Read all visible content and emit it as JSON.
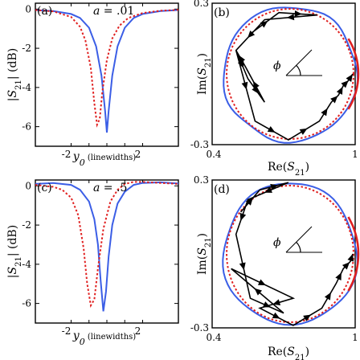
{
  "colors": {
    "blue": "#3b5ee6",
    "red": "#e02020",
    "black": "#000000"
  },
  "chart_data": [
    {
      "panel": "(a)",
      "type": "line",
      "annotation": "a = .01",
      "xlabel": "y0 (linewidths)",
      "ylabel": "|S21| (dB)",
      "xlim": [
        -4,
        4
      ],
      "ylim": [
        -7,
        0.3
      ],
      "xticks": [
        -2,
        2
      ],
      "yticks": [
        0,
        -2,
        -4,
        -6
      ],
      "series": [
        {
          "style": "blue-solid",
          "x": [
            -4,
            -3,
            -2,
            -1.5,
            -1,
            -0.6,
            -0.3,
            -0.1,
            0,
            0.1,
            0.3,
            0.6,
            1,
            1.5,
            2,
            3,
            4
          ],
          "y": [
            -0.05,
            -0.1,
            -0.25,
            -0.45,
            -0.95,
            -1.9,
            -3.4,
            -5.2,
            -6.3,
            -5.2,
            -3.4,
            -1.9,
            -0.95,
            -0.45,
            -0.25,
            -0.1,
            -0.05
          ]
        },
        {
          "style": "red-dotted",
          "x": [
            -4,
            -3,
            -2,
            -1.5,
            -1.2,
            -0.9,
            -0.7,
            -0.55,
            -0.4,
            -0.25,
            0,
            0.3,
            0.7,
            1.2,
            2,
            3,
            4
          ],
          "y": [
            -0.05,
            -0.12,
            -0.4,
            -0.9,
            -1.6,
            -3.0,
            -4.8,
            -5.9,
            -5.6,
            -4.2,
            -2.6,
            -1.5,
            -0.85,
            -0.45,
            -0.2,
            -0.08,
            -0.04
          ]
        }
      ]
    },
    {
      "panel": "(b)",
      "type": "line",
      "xlabel": "Re(S21)",
      "ylabel": "Im(S21)",
      "xlim": [
        0.4,
        1
      ],
      "ylim": [
        -0.3,
        0.3
      ],
      "xticks_labels": [
        "0.4",
        "1"
      ],
      "yticks_labels": [
        "0.3",
        "-0.3"
      ],
      "annotation": "ϕ",
      "trajectory": [
        [
          0.56,
          0.17
        ],
        [
          0.68,
          0.26
        ],
        [
          0.84,
          0.25
        ],
        [
          0.62,
          0.23
        ],
        [
          0.5,
          0.1
        ],
        [
          0.55,
          -0.02
        ],
        [
          0.62,
          -0.12
        ],
        [
          0.54,
          0.03
        ],
        [
          0.5,
          0.1
        ],
        [
          0.58,
          -0.2
        ],
        [
          0.72,
          -0.28
        ],
        [
          0.85,
          -0.2
        ],
        [
          0.9,
          -0.12
        ],
        [
          0.93,
          -0.09
        ],
        [
          0.95,
          -0.05
        ],
        [
          0.97,
          -0.03
        ],
        [
          0.99,
          0
        ]
      ]
    },
    {
      "panel": "(c)",
      "type": "line",
      "annotation": "a = .5",
      "xlabel": "y0 (linewidths)",
      "ylabel": "|S21| (dB)",
      "xlim": [
        -4,
        4
      ],
      "ylim": [
        -7,
        0.3
      ],
      "xticks": [
        -2,
        2
      ],
      "yticks": [
        0,
        -2,
        -4,
        -6
      ],
      "series": [
        {
          "style": "blue-solid",
          "x": [
            -4,
            -3,
            -2,
            -1.5,
            -1,
            -0.7,
            -0.5,
            -0.35,
            -0.2,
            -0.05,
            0.1,
            0.3,
            0.6,
            1,
            1.5,
            2,
            3,
            4
          ],
          "y": [
            0.1,
            0.15,
            0.05,
            -0.2,
            -0.8,
            -1.7,
            -3.0,
            -4.8,
            -6.4,
            -5.4,
            -3.6,
            -2.0,
            -0.9,
            -0.3,
            0.05,
            0.15,
            0.18,
            0.12
          ]
        },
        {
          "style": "red-dotted",
          "x": [
            -4,
            -3,
            -2.5,
            -2,
            -1.6,
            -1.3,
            -1.1,
            -0.9,
            -0.7,
            -0.5,
            -0.2,
            0.2,
            0.6,
            1,
            1.5,
            2,
            3,
            4
          ],
          "y": [
            0.05,
            -0.05,
            -0.2,
            -0.6,
            -1.5,
            -3.2,
            -5.0,
            -6.1,
            -5.8,
            -4.2,
            -2.2,
            -0.8,
            -0.2,
            0.1,
            0.2,
            0.2,
            0.15,
            0.1
          ]
        }
      ]
    },
    {
      "panel": "(d)",
      "type": "line",
      "xlabel": "Re(S21)",
      "ylabel": "Im(S21)",
      "xlim": [
        0.4,
        1
      ],
      "ylim": [
        -0.3,
        0.3
      ],
      "xticks_labels": [
        "0.4",
        "1"
      ],
      "yticks_labels": [
        "0.3",
        "-0.3"
      ],
      "annotation": "ϕ",
      "trajectory": [
        [
          0.52,
          0.17
        ],
        [
          0.6,
          0.26
        ],
        [
          0.72,
          0.29
        ],
        [
          0.55,
          0.22
        ],
        [
          0.5,
          0.08
        ],
        [
          0.56,
          -0.18
        ],
        [
          0.7,
          -0.24
        ],
        [
          0.48,
          -0.06
        ],
        [
          0.74,
          -0.18
        ],
        [
          0.6,
          -0.22
        ],
        [
          0.74,
          -0.29
        ],
        [
          0.86,
          -0.22
        ],
        [
          0.92,
          -0.12
        ],
        [
          0.95,
          -0.06
        ],
        [
          0.98,
          -0.03
        ],
        [
          0.99,
          0
        ]
      ]
    }
  ]
}
